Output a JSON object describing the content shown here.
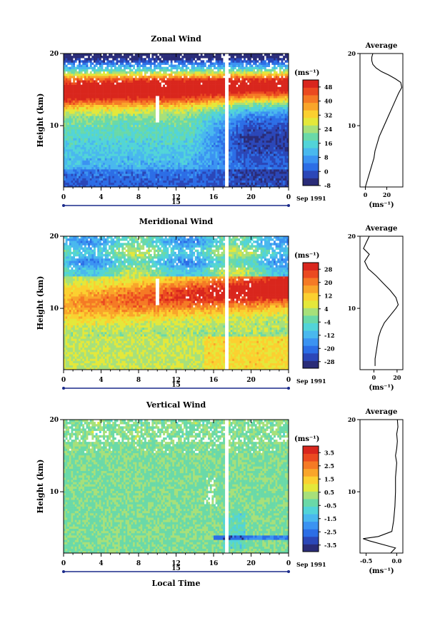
{
  "chart_data": [
    {
      "type": "heatmap",
      "title": "Zonal Wind",
      "ylabel": "Height (km)",
      "xlabel": "",
      "x_ticks": [
        "0",
        "4",
        "8",
        "12",
        "16",
        "20",
        "0"
      ],
      "y_ticks": [
        "10",
        "20"
      ],
      "ylim": [
        1.5,
        20
      ],
      "xlim": [
        0,
        24
      ],
      "date_label": "15",
      "month_label": "Sep 1991",
      "unit_label": "(ms⁻¹)",
      "colorbar_levels": [
        "48",
        "40",
        "32",
        "24",
        "16",
        "8",
        "0",
        "-8"
      ],
      "colorbar_range": [
        -8,
        52
      ],
      "profile": {
        "title": "Average",
        "x_ticks": [
          "0",
          "20"
        ],
        "xlim": [
          -5,
          35
        ],
        "xlabel": "(ms⁻¹)",
        "y_ticks": [
          "10",
          "20"
        ],
        "points": [
          [
            0,
            1.5
          ],
          [
            2,
            2.5
          ],
          [
            4,
            3.5
          ],
          [
            6,
            4.5
          ],
          [
            8,
            5.5
          ],
          [
            9,
            6.5
          ],
          [
            11,
            7.5
          ],
          [
            13,
            8.5
          ],
          [
            16,
            9.5
          ],
          [
            19,
            10.5
          ],
          [
            22,
            11.5
          ],
          [
            25,
            12.5
          ],
          [
            28,
            13.5
          ],
          [
            31,
            14.5
          ],
          [
            34,
            15.3
          ],
          [
            33,
            16
          ],
          [
            28,
            16.5
          ],
          [
            22,
            17
          ],
          [
            15,
            17.5
          ],
          [
            10,
            18
          ],
          [
            7,
            18.5
          ],
          [
            6,
            19
          ],
          [
            6,
            19.5
          ],
          [
            7,
            20
          ]
        ]
      }
    },
    {
      "type": "heatmap",
      "title": "Meridional Wind",
      "ylabel": "Height (km)",
      "xlabel": "",
      "x_ticks": [
        "0",
        "4",
        "8",
        "12",
        "16",
        "20",
        "0"
      ],
      "y_ticks": [
        "10",
        "20"
      ],
      "ylim": [
        1.5,
        20
      ],
      "xlim": [
        0,
        24
      ],
      "date_label": "15",
      "month_label": "Sep 1991",
      "unit_label": "(ms⁻¹)",
      "colorbar_levels": [
        "28",
        "20",
        "12",
        "4",
        "-4",
        "-12",
        "-20",
        "-28"
      ],
      "colorbar_range": [
        -32,
        32
      ],
      "profile": {
        "title": "Average",
        "x_ticks": [
          "0",
          "20"
        ],
        "xlim": [
          -12,
          25
        ],
        "xlabel": "(ms⁻¹)",
        "y_ticks": [
          "10",
          "20"
        ],
        "points": [
          [
            1,
            2
          ],
          [
            1,
            3
          ],
          [
            2,
            4
          ],
          [
            3,
            5
          ],
          [
            4,
            6
          ],
          [
            6,
            7
          ],
          [
            9,
            8
          ],
          [
            14,
            9
          ],
          [
            19,
            10
          ],
          [
            21,
            10.5
          ],
          [
            19,
            11.5
          ],
          [
            14,
            12.5
          ],
          [
            8,
            13.5
          ],
          [
            2,
            14.5
          ],
          [
            -5,
            15.5
          ],
          [
            -8,
            16.5
          ],
          [
            -4,
            17.5
          ],
          [
            -9,
            18.3
          ],
          [
            -7,
            19
          ],
          [
            -4,
            20
          ]
        ]
      }
    },
    {
      "type": "heatmap",
      "title": "Vertical Wind",
      "ylabel": "Height (km)",
      "xlabel": "Local Time",
      "x_ticks": [
        "0",
        "4",
        "8",
        "12",
        "16",
        "20",
        "0"
      ],
      "y_ticks": [
        "10",
        "20"
      ],
      "ylim": [
        1.5,
        20
      ],
      "xlim": [
        0,
        24
      ],
      "date_label": "15",
      "month_label": "Sep 1991",
      "unit_label": "(ms⁻¹)",
      "colorbar_levels": [
        "3.5",
        "2.5",
        "1.5",
        "0.5",
        "-0.5",
        "-1.5",
        "-2.5",
        "-3.5"
      ],
      "colorbar_range": [
        -4,
        4
      ],
      "profile": {
        "title": "Average",
        "x_ticks": [
          "-0.5",
          "0.0"
        ],
        "xlim": [
          -0.6,
          0.1
        ],
        "xlabel": "(ms⁻¹)",
        "y_ticks": [
          "10",
          "20"
        ],
        "points": [
          [
            -0.1,
            1.5
          ],
          [
            -0.02,
            2.2
          ],
          [
            -0.45,
            3.2
          ],
          [
            -0.55,
            3.5
          ],
          [
            -0.3,
            3.8
          ],
          [
            -0.08,
            4.5
          ],
          [
            -0.05,
            6
          ],
          [
            -0.03,
            8
          ],
          [
            -0.02,
            10
          ],
          [
            -0.02,
            12
          ],
          [
            0.0,
            14
          ],
          [
            -0.02,
            15
          ],
          [
            0.0,
            16
          ],
          [
            0.01,
            17
          ],
          [
            0.0,
            18
          ],
          [
            0.02,
            19
          ],
          [
            0.01,
            20
          ]
        ]
      }
    }
  ]
}
